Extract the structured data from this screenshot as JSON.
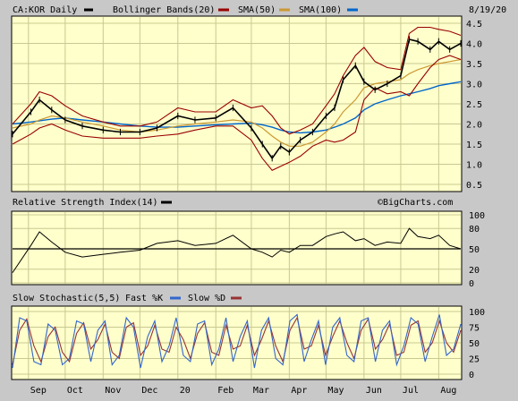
{
  "header": {
    "symbol": "CA:KOR Daily",
    "date": "8/19/20",
    "legend": [
      {
        "label": "Bollinger Bands(20)",
        "color": "#990000"
      },
      {
        "label": "SMA(50)",
        "color": "#cc9933"
      },
      {
        "label": "SMA(100)",
        "color": "#0066cc"
      }
    ]
  },
  "watermark": "©BigCharts.com",
  "colors": {
    "price": "#000000",
    "bollinger": "#990000",
    "sma50": "#cc9933",
    "sma100": "#0066cc",
    "panel_bg": "#ffffcc",
    "grid": "#c8c890",
    "fast_k": "#3366cc",
    "slow_d": "#993333"
  },
  "chart_data": [
    {
      "type": "line",
      "name": "price",
      "title": "CA:KOR Daily",
      "x_ticks": [
        "Sep",
        "Oct",
        "Nov",
        "Dec",
        "20",
        "Feb",
        "Mar",
        "Apr",
        "May",
        "Jun",
        "Jul",
        "Aug"
      ],
      "y_ticks": [
        0.5,
        1.0,
        1.5,
        2.0,
        2.5,
        3.0,
        3.5,
        4.0,
        4.5
      ],
      "ylim": [
        0.5,
        4.5
      ],
      "grid": true,
      "x": [
        "2019-08-19",
        "2019-09-03",
        "2019-09-10",
        "2019-09-20",
        "2019-10-01",
        "2019-10-15",
        "2019-11-01",
        "2019-11-15",
        "2019-12-01",
        "2019-12-15",
        "2020-01-01",
        "2020-01-15",
        "2020-02-01",
        "2020-02-15",
        "2020-03-01",
        "2020-03-10",
        "2020-03-18",
        "2020-03-25",
        "2020-04-01",
        "2020-04-10",
        "2020-04-20",
        "2020-05-01",
        "2020-05-08",
        "2020-05-15",
        "2020-05-25",
        "2020-06-01",
        "2020-06-10",
        "2020-06-20",
        "2020-07-01",
        "2020-07-08",
        "2020-07-15",
        "2020-07-25",
        "2020-08-01",
        "2020-08-10",
        "2020-08-19"
      ],
      "series": [
        {
          "name": "price",
          "values": [
            1.75,
            2.3,
            2.6,
            2.35,
            2.1,
            1.95,
            1.85,
            1.8,
            1.8,
            1.9,
            2.2,
            2.1,
            2.15,
            2.4,
            1.9,
            1.5,
            1.15,
            1.45,
            1.3,
            1.6,
            1.8,
            2.2,
            2.4,
            3.1,
            3.45,
            3.05,
            2.85,
            3.0,
            3.2,
            4.1,
            4.05,
            3.85,
            4.05,
            3.85,
            4.0
          ]
        },
        {
          "name": "Bollinger Bands(20) upper",
          "values": [
            2.0,
            2.5,
            2.8,
            2.7,
            2.45,
            2.2,
            2.05,
            1.95,
            1.95,
            2.05,
            2.4,
            2.3,
            2.3,
            2.6,
            2.4,
            2.45,
            2.2,
            1.9,
            1.75,
            1.85,
            2.0,
            2.45,
            2.75,
            3.2,
            3.7,
            3.9,
            3.55,
            3.4,
            3.35,
            4.25,
            4.4,
            4.4,
            4.35,
            4.3,
            4.2
          ]
        },
        {
          "name": "Bollinger Bands(20) lower",
          "values": [
            1.5,
            1.75,
            1.9,
            2.0,
            1.85,
            1.7,
            1.65,
            1.65,
            1.65,
            1.7,
            1.75,
            1.85,
            1.95,
            1.95,
            1.6,
            1.15,
            0.85,
            0.95,
            1.05,
            1.2,
            1.45,
            1.6,
            1.55,
            1.6,
            1.8,
            2.6,
            2.9,
            2.75,
            2.8,
            2.7,
            3.0,
            3.4,
            3.6,
            3.7,
            3.6
          ]
        },
        {
          "name": "SMA(50)",
          "values": [
            1.9,
            2.0,
            2.1,
            2.2,
            2.15,
            2.05,
            1.95,
            1.85,
            1.8,
            1.85,
            1.95,
            2.0,
            2.05,
            2.1,
            2.05,
            1.9,
            1.7,
            1.55,
            1.45,
            1.45,
            1.55,
            1.8,
            2.0,
            2.3,
            2.6,
            2.9,
            3.0,
            3.05,
            3.1,
            3.25,
            3.35,
            3.45,
            3.5,
            3.55,
            3.6
          ]
        },
        {
          "name": "SMA(100)",
          "values": [
            2.0,
            2.05,
            2.08,
            2.12,
            2.15,
            2.1,
            2.05,
            2.0,
            1.95,
            1.92,
            1.92,
            1.95,
            1.98,
            2.0,
            2.02,
            1.98,
            1.92,
            1.85,
            1.8,
            1.78,
            1.8,
            1.85,
            1.92,
            2.0,
            2.15,
            2.35,
            2.5,
            2.6,
            2.7,
            2.75,
            2.8,
            2.88,
            2.95,
            3.0,
            3.05
          ]
        }
      ]
    },
    {
      "type": "line",
      "name": "rsi",
      "title": "Relative Strength Index(14)",
      "y_ticks": [
        0,
        20,
        50,
        80,
        100
      ],
      "ylim": [
        0,
        100
      ],
      "reference_line": 50,
      "x": [
        "2019-08-19",
        "2019-09-03",
        "2019-09-10",
        "2019-09-20",
        "2019-10-01",
        "2019-10-15",
        "2019-11-01",
        "2019-11-15",
        "2019-12-01",
        "2019-12-15",
        "2020-01-01",
        "2020-01-15",
        "2020-02-01",
        "2020-02-15",
        "2020-03-01",
        "2020-03-10",
        "2020-03-18",
        "2020-03-25",
        "2020-04-01",
        "2020-04-10",
        "2020-04-20",
        "2020-05-01",
        "2020-05-08",
        "2020-05-15",
        "2020-05-25",
        "2020-06-01",
        "2020-06-10",
        "2020-06-20",
        "2020-07-01",
        "2020-07-08",
        "2020-07-15",
        "2020-07-25",
        "2020-08-01",
        "2020-08-10",
        "2020-08-19"
      ],
      "values": [
        15,
        55,
        75,
        60,
        45,
        38,
        42,
        45,
        48,
        58,
        62,
        55,
        58,
        70,
        50,
        45,
        38,
        48,
        45,
        55,
        55,
        68,
        72,
        75,
        62,
        65,
        55,
        60,
        58,
        80,
        68,
        65,
        70,
        55,
        50
      ]
    },
    {
      "type": "line",
      "name": "stochastic",
      "title": "Slow Stochastic(5,5)",
      "legend": [
        {
          "label": "Fast %K",
          "color": "#3366cc"
        },
        {
          "label": "Slow %D",
          "color": "#993333"
        }
      ],
      "y_ticks": [
        0,
        25,
        50,
        75,
        100
      ],
      "ylim": [
        0,
        100
      ],
      "x_index": [
        0,
        4,
        8,
        12,
        16,
        20,
        24,
        28,
        32,
        36,
        40,
        44,
        48,
        52,
        56,
        60,
        64,
        68,
        72,
        76,
        80,
        84,
        88,
        92,
        96,
        100,
        104,
        108,
        112,
        116,
        120,
        124,
        128,
        132,
        136,
        140,
        144,
        148,
        152,
        156,
        160,
        164,
        168,
        172,
        176,
        180,
        184,
        188,
        192,
        196,
        200,
        204,
        208,
        212,
        216,
        220,
        224,
        228,
        232,
        236,
        240,
        244,
        248,
        252
      ],
      "series": [
        {
          "name": "Fast %K",
          "values": [
            10,
            90,
            85,
            20,
            15,
            80,
            70,
            15,
            25,
            85,
            80,
            20,
            70,
            85,
            15,
            30,
            90,
            75,
            10,
            60,
            85,
            20,
            45,
            90,
            30,
            20,
            80,
            85,
            15,
            40,
            90,
            20,
            60,
            85,
            10,
            70,
            90,
            25,
            15,
            85,
            95,
            20,
            55,
            85,
            15,
            75,
            90,
            30,
            20,
            85,
            90,
            20,
            70,
            85,
            15,
            45,
            90,
            80,
            20,
            60,
            95,
            30,
            40,
            80
          ]
        },
        {
          "name": "Slow %D",
          "values": [
            15,
            70,
            88,
            45,
            20,
            60,
            75,
            35,
            20,
            65,
            82,
            40,
            55,
            80,
            35,
            25,
            75,
            82,
            30,
            45,
            78,
            40,
            35,
            75,
            55,
            25,
            65,
            82,
            35,
            30,
            78,
            40,
            45,
            78,
            30,
            55,
            85,
            45,
            20,
            70,
            90,
            40,
            45,
            78,
            30,
            60,
            85,
            50,
            25,
            70,
            88,
            40,
            55,
            80,
            30,
            35,
            78,
            85,
            35,
            50,
            85,
            50,
            35,
            70
          ]
        }
      ]
    }
  ]
}
